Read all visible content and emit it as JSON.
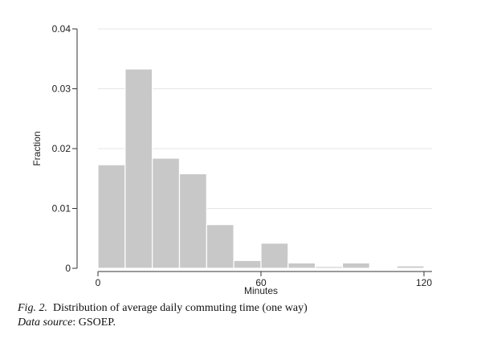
{
  "chart_data": {
    "type": "bar",
    "subtype": "histogram",
    "xlabel": "Minutes",
    "ylabel": "Fraction",
    "xlim": [
      0,
      120
    ],
    "ylim": [
      0,
      0.04
    ],
    "x_ticks": [
      0,
      60,
      120
    ],
    "x_tick_labels": [
      "0",
      "60",
      "120"
    ],
    "y_ticks": [
      0,
      0.01,
      0.02,
      0.03,
      0.04
    ],
    "y_tick_labels": [
      "0",
      "0.01",
      "0.02",
      "0.03",
      "0.04"
    ],
    "grid": "horizontal",
    "legend": "none",
    "bins": [
      {
        "start": 0,
        "end": 10,
        "value": 0.0173
      },
      {
        "start": 10,
        "end": 20,
        "value": 0.0333
      },
      {
        "start": 20,
        "end": 30,
        "value": 0.0184
      },
      {
        "start": 30,
        "end": 40,
        "value": 0.0158
      },
      {
        "start": 40,
        "end": 50,
        "value": 0.0073
      },
      {
        "start": 50,
        "end": 60,
        "value": 0.0013
      },
      {
        "start": 60,
        "end": 70,
        "value": 0.0042
      },
      {
        "start": 70,
        "end": 80,
        "value": 0.0009
      },
      {
        "start": 80,
        "end": 90,
        "value": 0.0003
      },
      {
        "start": 90,
        "end": 100,
        "value": 0.0009
      },
      {
        "start": 100,
        "end": 110,
        "value": 0.0001
      },
      {
        "start": 110,
        "end": 120,
        "value": 0.0004
      }
    ],
    "colors": {
      "bar_fill": "#c8c8c8",
      "bar_stroke": "#ffffff",
      "axis": "#333333",
      "grid": "#e4e4e4",
      "text": "#222222"
    }
  },
  "caption": {
    "fig_label": "Fig. 2.",
    "fig_text": "Distribution of average daily commuting time (one way)",
    "source_label": "Data source",
    "source_sep": ":",
    "source_text": "GSOEP."
  }
}
